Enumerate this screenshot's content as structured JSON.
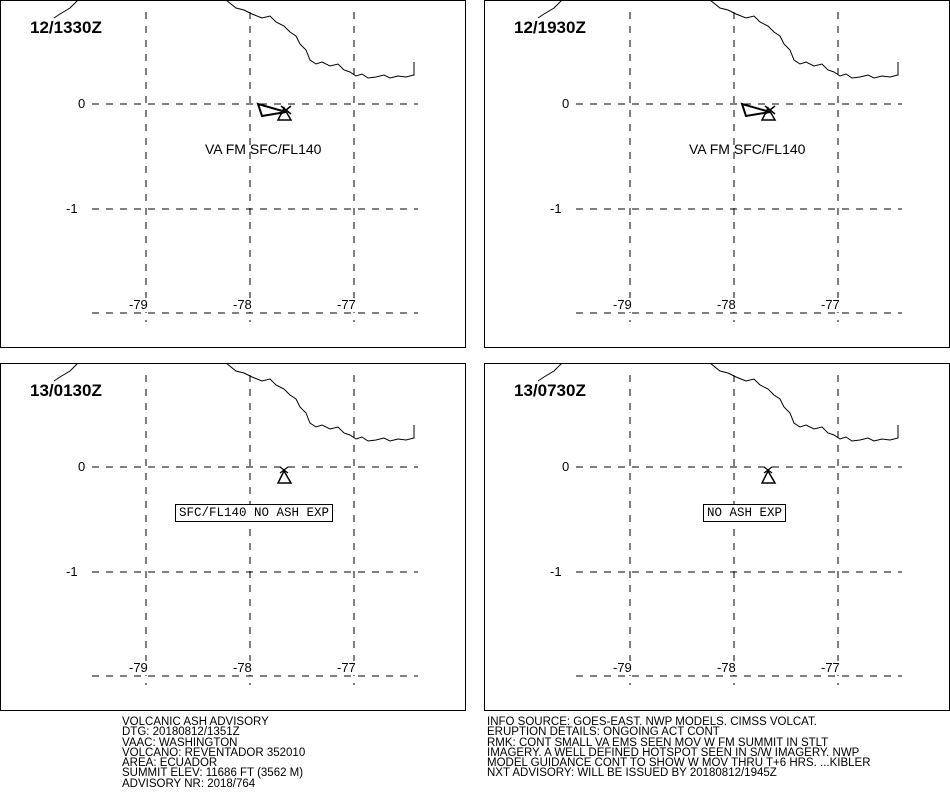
{
  "panels": [
    {
      "time": "12/1330Z",
      "label": "VA FM SFC/FL140",
      "label_style": "plain",
      "ash_polygon": true
    },
    {
      "time": "12/1930Z",
      "label": "VA FM SFC/FL140",
      "label_style": "plain",
      "ash_polygon": true
    },
    {
      "time": "13/0130Z",
      "label": "SFC/FL140 NO ASH EXP",
      "label_style": "boxed",
      "ash_polygon": false
    },
    {
      "time": "13/0730Z",
      "label": "NO ASH EXP",
      "label_style": "boxed",
      "ash_polygon": false
    }
  ],
  "axes": {
    "lat_labels": [
      "0",
      "-1"
    ],
    "lon_labels": [
      "-79",
      "-78",
      "-77"
    ]
  },
  "advisory_left": [
    "VOLCANIC ASH ADVISORY",
    "DTG: 20180812/1351Z",
    "VAAC: WASHINGTON",
    "VOLCANO: REVENTADOR 352010",
    "AREA: ECUADOR",
    "SUMMIT ELEV: 11686 FT (3562 M)",
    "ADVISORY NR: 2018/764"
  ],
  "advisory_right": [
    "INFO SOURCE: GOES-EAST. NWP MODELS. CIMSS VOLCAT.",
    "ERUPTION DETAILS: ONGOING ACT CONT",
    "RMK: CONT SMALL VA EMS SEEN MOV W FM SUMMIT IN STLT",
    "IMAGERY. A WELL DEFINED HOTSPOT SEEN IN S/W IMAGERY. NWP",
    "MODEL GUIDANCE CONT TO SHOW W MOV THRU T+6 HRS. ...KIBLER",
    "NXT ADVISORY: WILL BE ISSUED BY 20180812/1945Z"
  ],
  "colors": {
    "background": "#ffffff",
    "ink": "#000000"
  },
  "icons": {
    "volcano": "volcano-triangle-icon"
  }
}
